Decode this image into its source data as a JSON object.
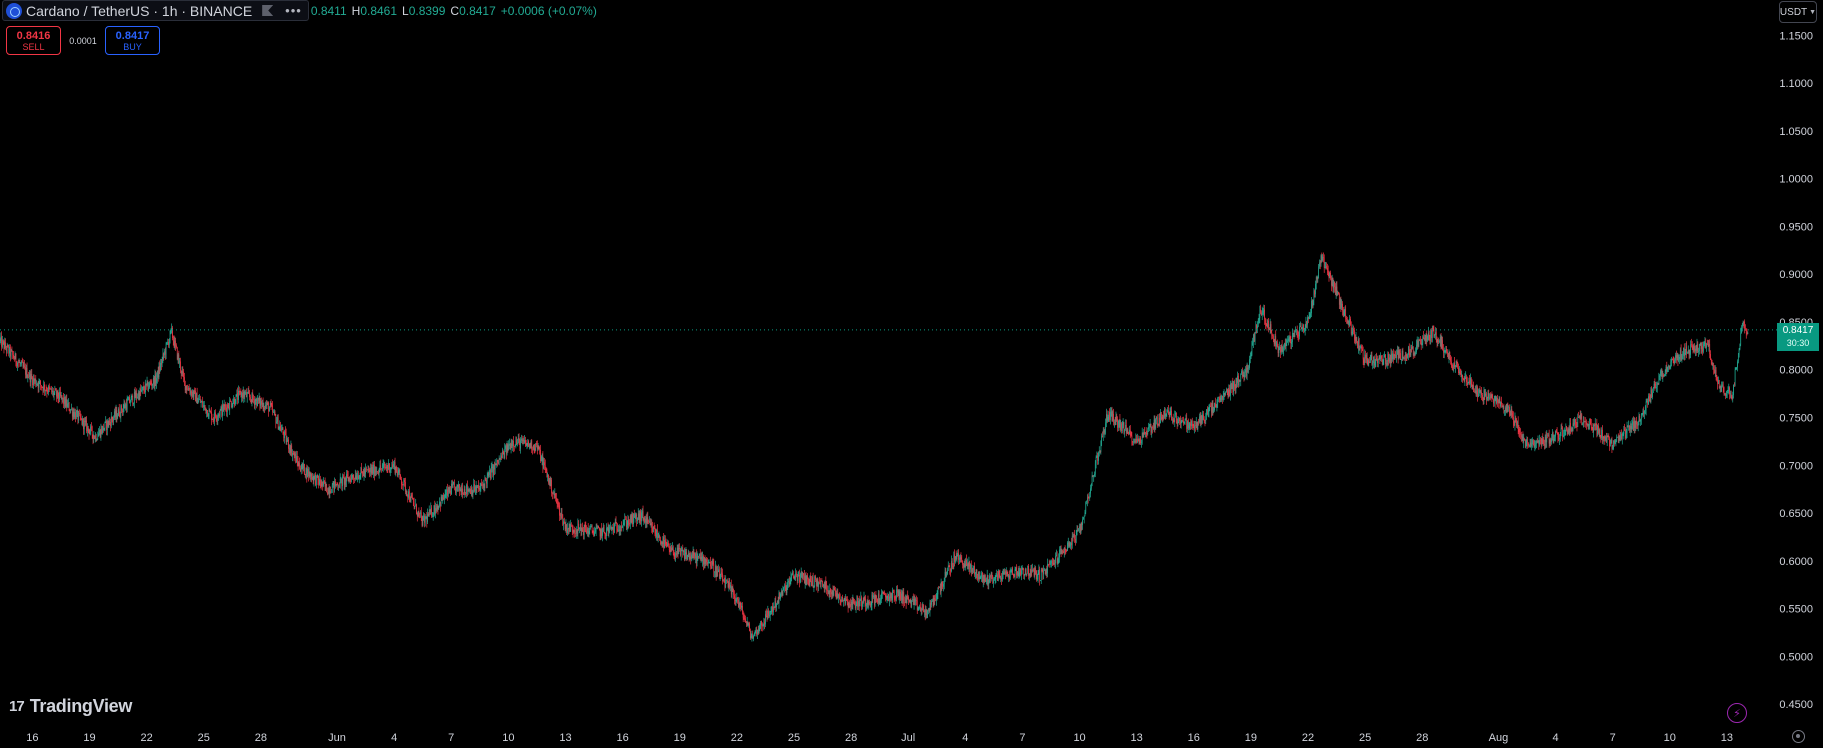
{
  "header": {
    "symbol_title": "Cardano / TetherUS · 1h · BINANCE",
    "ohlc": {
      "o_value": "0.8411",
      "h_label": "H",
      "h_value": "0.8461",
      "l_label": "L",
      "l_value": "0.8399",
      "c_label": "C",
      "c_value": "0.8417",
      "change": "+0.0006 (+0.07%)"
    }
  },
  "trade": {
    "sell_price": "0.8416",
    "sell_label": "SELL",
    "spread": "0.0001",
    "buy_price": "0.8417",
    "buy_label": "BUY"
  },
  "currency_button": {
    "label": "USDT"
  },
  "price_tag": {
    "price": "0.8417",
    "countdown": "30:30"
  },
  "logo": {
    "text": "TradingView"
  },
  "icons": {
    "symbol": "cardano-coin-icon",
    "flag": "flag-icon",
    "more": "more-icon",
    "logo": "tradingview-logo-icon",
    "bolt": "lightning-icon",
    "settings": "settings-icon"
  },
  "colors": {
    "up": "#22ab94",
    "down": "#f23645",
    "background": "#000000",
    "axis_text": "#d1d4dc",
    "price_tag": "#089981"
  },
  "chart_data": {
    "type": "line",
    "style": "candlestick",
    "last_price": 0.8417,
    "ylim": [
      0.425,
      1.187
    ],
    "y_ticks": [
      0.45,
      0.5,
      0.55,
      0.6,
      0.65,
      0.7,
      0.75,
      0.8,
      0.85,
      0.9,
      0.95,
      1.0,
      1.05,
      1.1,
      1.15
    ],
    "x_labels": [
      "16",
      "19",
      "22",
      "25",
      "28",
      "Jun",
      "4",
      "7",
      "10",
      "13",
      "16",
      "19",
      "22",
      "25",
      "28",
      "Jul",
      "4",
      "7",
      "10",
      "13",
      "16",
      "19",
      "22",
      "25",
      "28",
      "Aug",
      "4",
      "7",
      "10",
      "13"
    ],
    "x_label_days": [
      0,
      3,
      6,
      9,
      12,
      16,
      19,
      22,
      25,
      28,
      31,
      34,
      37,
      40,
      43,
      46,
      49,
      52,
      55,
      58,
      61,
      64,
      67,
      70,
      73,
      77,
      80,
      83,
      86,
      89
    ],
    "x_day_range": [
      -1.7,
      91
    ],
    "grid": false,
    "price_path": [
      [
        -1.7,
        0.83
      ],
      [
        0,
        0.79
      ],
      [
        1.5,
        0.77
      ],
      [
        3.3,
        0.73
      ],
      [
        5,
        0.765
      ],
      [
        6.5,
        0.79
      ],
      [
        7.3,
        0.84
      ],
      [
        8,
        0.785
      ],
      [
        9.5,
        0.75
      ],
      [
        11,
        0.775
      ],
      [
        12.5,
        0.76
      ],
      [
        14,
        0.7
      ],
      [
        15.5,
        0.675
      ],
      [
        17,
        0.69
      ],
      [
        19,
        0.7
      ],
      [
        20.5,
        0.64
      ],
      [
        22,
        0.675
      ],
      [
        23.5,
        0.675
      ],
      [
        25.2,
        0.725
      ],
      [
        26.5,
        0.72
      ],
      [
        28,
        0.635
      ],
      [
        30,
        0.63
      ],
      [
        32,
        0.647
      ],
      [
        33.5,
        0.61
      ],
      [
        35.5,
        0.6
      ],
      [
        37,
        0.56
      ],
      [
        37.8,
        0.52
      ],
      [
        38.7,
        0.545
      ],
      [
        40,
        0.585
      ],
      [
        41.5,
        0.575
      ],
      [
        43,
        0.555
      ],
      [
        45.5,
        0.565
      ],
      [
        47,
        0.545
      ],
      [
        48.5,
        0.605
      ],
      [
        50,
        0.58
      ],
      [
        52,
        0.59
      ],
      [
        53,
        0.585
      ],
      [
        55,
        0.63
      ],
      [
        56.5,
        0.755
      ],
      [
        58,
        0.725
      ],
      [
        59.5,
        0.755
      ],
      [
        61,
        0.74
      ],
      [
        62.5,
        0.77
      ],
      [
        63.8,
        0.8
      ],
      [
        64.5,
        0.865
      ],
      [
        65.5,
        0.82
      ],
      [
        67,
        0.85
      ],
      [
        67.7,
        0.92
      ],
      [
        68.8,
        0.865
      ],
      [
        70,
        0.81
      ],
      [
        71,
        0.81
      ],
      [
        72.5,
        0.82
      ],
      [
        73.6,
        0.84
      ],
      [
        74.5,
        0.81
      ],
      [
        76,
        0.775
      ],
      [
        77.5,
        0.76
      ],
      [
        78.5,
        0.72
      ],
      [
        80,
        0.73
      ],
      [
        81.5,
        0.75
      ],
      [
        83,
        0.72
      ],
      [
        84.5,
        0.75
      ],
      [
        85.5,
        0.795
      ],
      [
        86.8,
        0.82
      ],
      [
        88,
        0.825
      ],
      [
        88.6,
        0.78
      ],
      [
        89.3,
        0.775
      ],
      [
        89.8,
        0.85
      ],
      [
        90.1,
        0.8417
      ]
    ]
  }
}
